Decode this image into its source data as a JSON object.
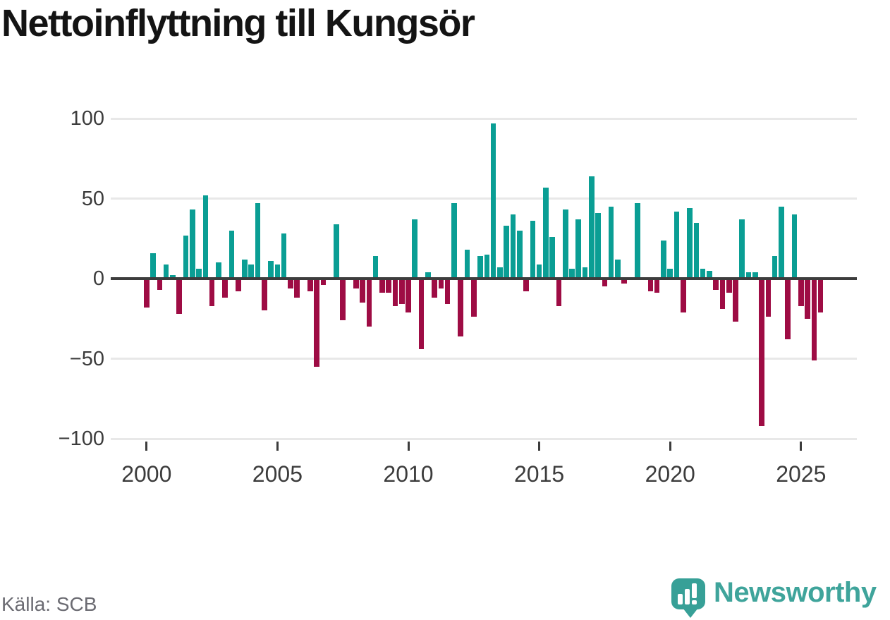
{
  "title": "Nettoinflyttning till Kungsör",
  "source": "Källa: SCB",
  "brand": {
    "name": "Newsworthy"
  },
  "chart_data": {
    "type": "bar",
    "title": "Nettoinflyttning till Kungsör",
    "xlabel": "",
    "ylabel": "",
    "ylim": [
      -100,
      100
    ],
    "grid": "horizontal",
    "frequency": "quarterly",
    "start_period": "2000-Q1",
    "end_period": "2025-Q4",
    "positive_color": "#0a9e94",
    "negative_color": "#9e0c44",
    "y_ticks": [
      {
        "label": "100",
        "value": 100
      },
      {
        "label": "50",
        "value": 50
      },
      {
        "label": "0",
        "value": 0
      },
      {
        "label": "−50",
        "value": -50
      },
      {
        "label": "−100",
        "value": -100
      }
    ],
    "x_ticks": [
      {
        "label": "2000",
        "year": 2000
      },
      {
        "label": "2005",
        "year": 2005
      },
      {
        "label": "2010",
        "year": 2010
      },
      {
        "label": "2015",
        "year": 2015
      },
      {
        "label": "2020",
        "year": 2020
      },
      {
        "label": "2025",
        "year": 2025
      }
    ],
    "values": [
      -18,
      16,
      -7,
      9,
      2,
      -22,
      27,
      43,
      6,
      52,
      -17,
      10,
      -12,
      30,
      -8,
      12,
      9,
      47,
      -20,
      11,
      9,
      28,
      -6,
      -12,
      0,
      -8,
      -55,
      -4,
      0,
      34,
      -26,
      0,
      -6,
      -15,
      -30,
      14,
      -9,
      -9,
      -17,
      -16,
      -21,
      37,
      -44,
      4,
      -12,
      -6,
      -16,
      47,
      -36,
      18,
      -24,
      14,
      15,
      97,
      7,
      33,
      40,
      30,
      -8,
      36,
      9,
      57,
      26,
      -17,
      43,
      6,
      37,
      7,
      64,
      41,
      -5,
      45,
      12,
      -3,
      0,
      47,
      0,
      -8,
      -9,
      24,
      6,
      42,
      -21,
      44,
      35,
      6,
      5,
      -7,
      -19,
      -9,
      -27,
      37,
      4,
      4,
      -92,
      -24,
      14,
      45,
      -38,
      40,
      -17,
      -25,
      -51,
      -21
    ]
  }
}
